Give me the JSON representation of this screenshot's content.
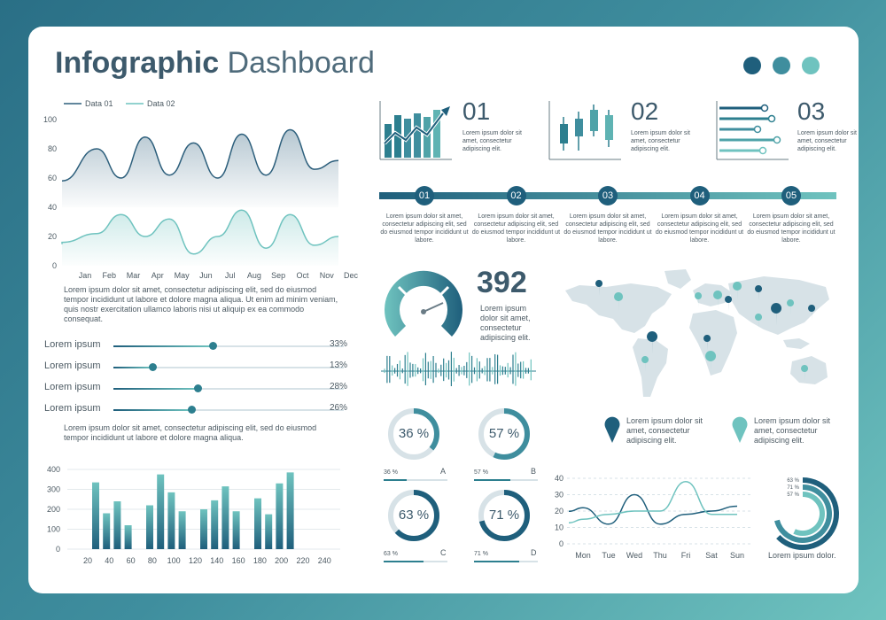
{
  "header": {
    "title_bold": "Infographic",
    "title_rest": " Dashboard",
    "dot_colors": [
      "#1f5f7c",
      "#3f8e9e",
      "#6fc3bf"
    ]
  },
  "line_chart": {
    "chart_data": {
      "type": "area",
      "categories": [
        "Jan",
        "Feb",
        "Mar",
        "Apr",
        "May",
        "Jun",
        "Jul",
        "Aug",
        "Sep",
        "Oct",
        "Nov",
        "Dec"
      ],
      "series": [
        {
          "name": "Data 01",
          "values": [
            58,
            80,
            60,
            88,
            62,
            84,
            60,
            90,
            62,
            93,
            66,
            72
          ],
          "color": "#2d5f7c"
        },
        {
          "name": "Data 02",
          "values": [
            16,
            22,
            35,
            20,
            32,
            8,
            20,
            38,
            12,
            35,
            14,
            20
          ],
          "color": "#6fc3bf"
        }
      ],
      "yticks": [
        0,
        20,
        40,
        60,
        80,
        100
      ],
      "ylim": [
        0,
        100
      ],
      "legend": "top-left"
    },
    "text": "Lorem ipsum dolor sit amet, consectetur adipiscing elit, sed do eiusmod tempor incididunt ut labore et dolore magna aliqua. Ut enim ad minim veniam, quis nostr exercitation ullamco laboris nisi ut aliquip ex ea commodo consequat."
  },
  "sliders": [
    {
      "label": "Lorem ipsum",
      "value": 33,
      "value_label": "33%"
    },
    {
      "label": "Lorem ipsum",
      "value": 13,
      "value_label": "13%"
    },
    {
      "label": "Lorem ipsum",
      "value": 28,
      "value_label": "28%"
    },
    {
      "label": "Lorem ipsum",
      "value": 26,
      "value_label": "26%"
    }
  ],
  "sliders_text": "Lorem ipsum dolor sit amet, consectetur adipiscing elit, sed do eiusmod tempor incididunt ut labore et dolore magna aliqua.",
  "bar_chart": {
    "chart_data": {
      "type": "bar",
      "xticks": [
        20,
        40,
        60,
        80,
        100,
        120,
        140,
        160,
        180,
        200,
        220,
        240
      ],
      "values": [
        335,
        180,
        240,
        120,
        0,
        220,
        375,
        285,
        190,
        0,
        200,
        245,
        315,
        190,
        0,
        255,
        175,
        330,
        385
      ],
      "yticks": [
        0,
        100,
        200,
        300,
        400
      ],
      "ylim": [
        0,
        400
      ]
    }
  },
  "kpis": [
    {
      "num": "01",
      "text": "Lorem ipsum dolor sit amet, consectetur adipiscing elit."
    },
    {
      "num": "02",
      "text": "Lorem ipsum dolor sit amet, consectetur adipiscing elit."
    },
    {
      "num": "03",
      "text": "Lorem ipsum dolor sit amet, consectetur adipiscing elit."
    }
  ],
  "timeline": [
    {
      "num": "01",
      "text": "Lorem ipsum dolor sit amet, consectetur adipiscing elit, sed do eiusmod tempor incididunt ut labore."
    },
    {
      "num": "02",
      "text": "Lorem ipsum dolor sit amet, consectetur adipiscing elit, sed do eiusmod tempor incididunt ut labore."
    },
    {
      "num": "03",
      "text": "Lorem ipsum dolor sit amet, consectetur adipiscing elit, sed do eiusmod tempor incididunt ut labore."
    },
    {
      "num": "04",
      "text": "Lorem ipsum dolor sit amet, consectetur adipiscing elit, sed do eiusmod tempor incididunt ut labore."
    },
    {
      "num": "05",
      "text": "Lorem ipsum dolor sit amet, consectetur adipiscing elit, sed do eiusmod tempor incididunt ut labore."
    }
  ],
  "gauge": {
    "value": "392",
    "text": "Lorem ipsum dolor sit amet, consectetur adipiscing elit."
  },
  "rings": [
    {
      "value": 36,
      "center": "36 %",
      "small": "36 %",
      "letter": "A"
    },
    {
      "value": 57,
      "center": "57 %",
      "small": "57 %",
      "letter": "B"
    },
    {
      "value": 63,
      "center": "63 %",
      "small": "63 %",
      "letter": "C"
    },
    {
      "value": 71,
      "center": "71 %",
      "small": "71 %",
      "letter": "D"
    }
  ],
  "map_legend": [
    {
      "color": "#1f5f7c",
      "text": "Lorem ipsum dolor sit amet, consectetur adipiscing elit."
    },
    {
      "color": "#6fc3bf",
      "text": "Lorem ipsum dolor sit amet, consectetur adipiscing elit."
    }
  ],
  "week_chart": {
    "chart_data": {
      "type": "line",
      "categories": [
        "Mon",
        "Tue",
        "Wed",
        "Thu",
        "Fri",
        "Sat",
        "Sun"
      ],
      "series": [
        {
          "values": [
            22,
            12,
            30,
            12,
            18,
            20,
            23
          ],
          "color": "#1f5f7c"
        },
        {
          "values": [
            15,
            18,
            20,
            20,
            38,
            18,
            18
          ],
          "color": "#6fc3bf"
        }
      ],
      "yticks": [
        0,
        10,
        20,
        30,
        40
      ],
      "ylim": [
        0,
        40
      ]
    }
  },
  "radial": {
    "chart_data": {
      "type": "pie",
      "values": [
        63,
        71,
        57
      ],
      "labels": [
        "63 %",
        "71 %",
        "57 %"
      ]
    },
    "caption": "Lorem ipsum dolor."
  }
}
